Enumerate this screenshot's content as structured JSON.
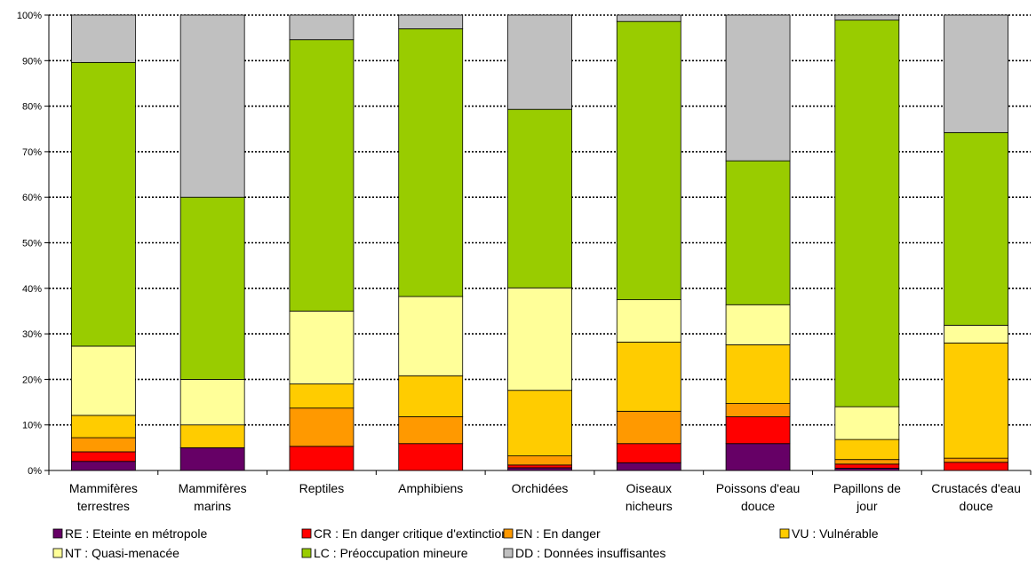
{
  "chart_data": {
    "type": "bar",
    "stacked": true,
    "percent": true,
    "grid": true,
    "legend_position": "bottom",
    "ylim": [
      0,
      100
    ],
    "yticks": [
      "0%",
      "10%",
      "20%",
      "30%",
      "40%",
      "50%",
      "60%",
      "70%",
      "80%",
      "90%",
      "100%"
    ],
    "categories": [
      [
        "Mammifères",
        "terrestres"
      ],
      [
        "Mammifères",
        "marins"
      ],
      [
        "Reptiles"
      ],
      [
        "Amphibiens"
      ],
      [
        "Orchidées"
      ],
      [
        "Oiseaux",
        "nicheurs"
      ],
      [
        "Poissons d'eau",
        "douce"
      ],
      [
        "Papillons de",
        "jour"
      ],
      [
        "Crustacés d'eau",
        "douce"
      ]
    ],
    "series": [
      {
        "name": "RE : Eteinte en métropole",
        "color": "#660066",
        "values": [
          2,
          5,
          0,
          0,
          0.6,
          1.7,
          5.9,
          0.5,
          0
        ]
      },
      {
        "name": "CR : En danger critique d'extinction",
        "color": "#ff0000",
        "values": [
          2.1,
          0,
          5.3,
          5.9,
          0.6,
          4.2,
          5.9,
          0.9,
          1.8
        ]
      },
      {
        "name": "EN : En danger",
        "color": "#ff9900",
        "values": [
          3.1,
          0,
          8.4,
          5.9,
          2,
          7.1,
          2.9,
          1,
          0.9
        ]
      },
      {
        "name": "VU : Vulnérable",
        "color": "#ffcc00",
        "values": [
          4.9,
          5,
          5.3,
          9,
          14.4,
          15.2,
          12.9,
          4.4,
          25.3
        ]
      },
      {
        "name": "NT : Quasi-menacée",
        "color": "#ffff99",
        "values": [
          15.2,
          10,
          16,
          17.4,
          22.5,
          9.3,
          8.8,
          7.2,
          3.9
        ]
      },
      {
        "name": "LC : Préoccupation mineure",
        "color": "#99cc00",
        "values": [
          62.3,
          40,
          59.6,
          58.8,
          39.2,
          61.1,
          31.6,
          84.9,
          42.3
        ]
      },
      {
        "name": "DD : Données insuffisantes",
        "color": "#c0c0c0",
        "values": [
          10.4,
          40,
          5.4,
          3,
          20.7,
          1.4,
          32,
          1.1,
          25.8
        ]
      }
    ]
  }
}
